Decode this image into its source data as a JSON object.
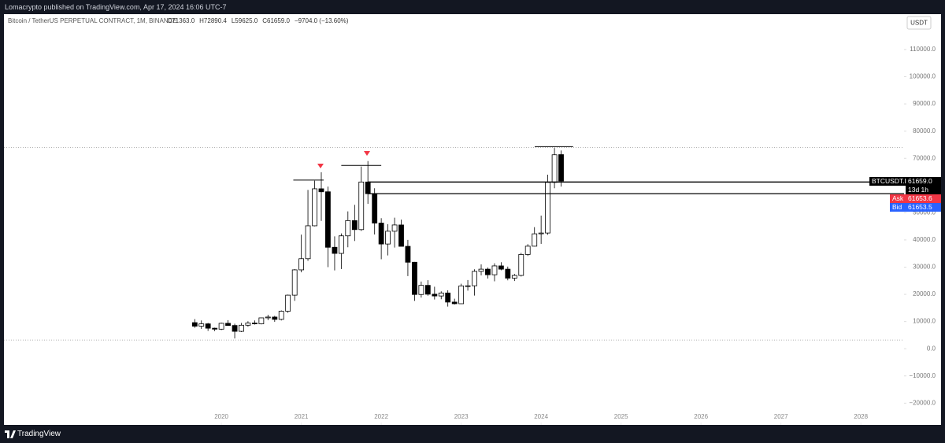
{
  "header": {
    "published": "Lomacrypto published on TradingView.com, Apr 17, 2024 16:06 UTC-7",
    "brand": "TradingView"
  },
  "chart_data": {
    "type": "candlestick",
    "title": "Bitcoin / TetherUS PERPETUAL CONTRACT, 1M, BINANCE",
    "ohlc_legend": [
      "O71363.0",
      "H72890.4",
      "L59625.0",
      "C61659.0",
      "−9704.0 (−13.60%)"
    ],
    "currency": "USDT",
    "x": [
      2019.667,
      2019.75,
      2019.833,
      2019.917,
      2020,
      2020.083,
      2020.167,
      2020.25,
      2020.333,
      2020.417,
      2020.5,
      2020.583,
      2020.667,
      2020.75,
      2020.833,
      2020.917,
      2021,
      2021.083,
      2021.167,
      2021.25,
      2021.333,
      2021.417,
      2021.5,
      2021.583,
      2021.667,
      2021.75,
      2021.833,
      2021.917,
      2022,
      2022.083,
      2022.167,
      2022.25,
      2022.333,
      2022.417,
      2022.5,
      2022.583,
      2022.667,
      2022.75,
      2022.833,
      2022.917,
      2023,
      2023.083,
      2023.167,
      2023.25,
      2023.333,
      2023.417,
      2023.5,
      2023.583,
      2023.667,
      2023.75,
      2023.833,
      2023.917,
      2024,
      2024.083,
      2024.167,
      2024.25
    ],
    "open": [
      9600,
      8300,
      9150,
      7550,
      7200,
      9350,
      8550,
      6400,
      8650,
      9450,
      9150,
      11350,
      11650,
      10800,
      13800,
      19700,
      29000,
      33100,
      45200,
      58800,
      57700,
      37300,
      35050,
      41500,
      47100,
      43800,
      61300,
      57000,
      46200,
      38500,
      43200,
      45500,
      37650,
      31800,
      19950,
      23300,
      20050,
      19400,
      20500,
      17150,
      16550,
      23100,
      23150,
      28450,
      29250,
      27200,
      30450,
      29250,
      25950,
      26950,
      34650,
      37700,
      42250,
      42550,
      61150,
      71363
    ],
    "high": [
      10900,
      10400,
      9500,
      7750,
      9600,
      10500,
      9200,
      9500,
      10100,
      10400,
      11450,
      12500,
      12100,
      14100,
      19900,
      29300,
      41950,
      58400,
      61800,
      64900,
      59600,
      41300,
      42400,
      50500,
      52900,
      67000,
      69000,
      59000,
      48000,
      45800,
      48200,
      47450,
      40000,
      31900,
      24700,
      25200,
      22800,
      21100,
      21500,
      18400,
      23900,
      25250,
      29200,
      31000,
      29850,
      31400,
      31800,
      30200,
      27500,
      35250,
      38450,
      44700,
      48950,
      64000,
      73800,
      72890.4
    ],
    "low": [
      7700,
      7300,
      6550,
      6430,
      6850,
      8450,
      3800,
      6150,
      8100,
      8900,
      8950,
      10500,
      9900,
      10400,
      13200,
      17600,
      28100,
      32300,
      45000,
      47000,
      30000,
      28800,
      29300,
      37300,
      39600,
      43300,
      53250,
      42000,
      32900,
      34300,
      37200,
      37700,
      26700,
      17600,
      18800,
      19500,
      18100,
      18200,
      15500,
      16250,
      16500,
      21350,
      19550,
      26950,
      25800,
      24800,
      28850,
      25150,
      24900,
      26550,
      34100,
      37600,
      38550,
      41900,
      59000,
      59625
    ],
    "close": [
      8300,
      9150,
      7550,
      7200,
      9350,
      8550,
      6400,
      8650,
      9450,
      9150,
      11350,
      11650,
      10800,
      13800,
      19700,
      29000,
      33100,
      45200,
      58800,
      57700,
      37300,
      35050,
      41500,
      47100,
      43800,
      61300,
      57000,
      46200,
      38500,
      43200,
      45500,
      37650,
      31800,
      19950,
      23300,
      20050,
      19400,
      20500,
      17150,
      16550,
      23100,
      23150,
      28450,
      29250,
      27200,
      30450,
      29250,
      25950,
      26950,
      34650,
      37700,
      42250,
      42550,
      61150,
      71300,
      61659
    ],
    "levels": [
      {
        "x": 2021.833,
        "value": 61300
      },
      {
        "x": 2021.833,
        "value": 57000
      }
    ],
    "dotted_levels": [
      74000,
      3200
    ],
    "high_marks": [
      {
        "from": 2020.9,
        "to": 2021.28,
        "value": 62000
      },
      {
        "from": 2021.5,
        "to": 2022.0,
        "value": 67400
      },
      {
        "from": 2023.92,
        "to": 2024.4,
        "value": 74300
      }
    ],
    "xlim": [
      2017.28,
      2028.54
    ],
    "xticks": [
      2020,
      2021,
      2022,
      2023,
      2024,
      2025,
      2026,
      2027,
      2028
    ],
    "ylim": [
      -28000,
      123000
    ],
    "yticks": [
      {
        "value": 110000,
        "label": "110000.0"
      },
      {
        "value": 100000,
        "label": "100000.0"
      },
      {
        "value": 90000,
        "label": "90000.0"
      },
      {
        "value": 80000,
        "label": "80000.0"
      },
      {
        "value": 70000,
        "label": "70000.0"
      },
      {
        "value": 50000,
        "label": "50000.0"
      },
      {
        "value": 40000,
        "label": "40000.0"
      },
      {
        "value": 30000,
        "label": "30000.0"
      },
      {
        "value": 20000,
        "label": "20000.0"
      },
      {
        "value": 10000,
        "label": "10000.0"
      },
      {
        "value": 0,
        "label": "0.0"
      },
      {
        "value": -10000,
        "label": "−10000.0"
      },
      {
        "value": -20000,
        "label": "−20000.0"
      }
    ],
    "price_tag": {
      "symbol": "BTCUSDT.P",
      "price": "61659.0",
      "countdown": "13d 1h"
    },
    "ask": {
      "label": "Ask",
      "price": "61653.6"
    },
    "bid": {
      "label": "Bid",
      "price": "61653.5"
    },
    "up_color": "#ffffff",
    "down_color": "#000000",
    "outline_color": "#000000"
  }
}
